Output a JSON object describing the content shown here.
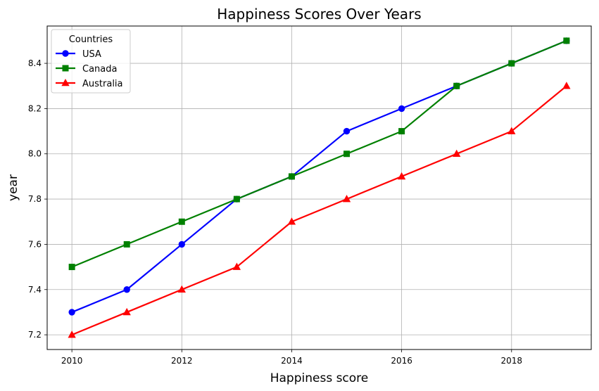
{
  "chart_data": {
    "type": "line",
    "title": "Happiness Scores Over Years",
    "xlabel": "Happiness score",
    "ylabel": "year",
    "x": [
      2010,
      2011,
      2012,
      2013,
      2014,
      2015,
      2016,
      2017,
      2018,
      2019
    ],
    "xlim": [
      2009.55,
      2019.45
    ],
    "ylim": [
      7.135,
      8.565
    ],
    "xticks": [
      2010,
      2012,
      2014,
      2016,
      2018
    ],
    "yticks": [
      7.2,
      7.4,
      7.6,
      7.8,
      8.0,
      8.2,
      8.4
    ],
    "grid": true,
    "legend": {
      "title": "Countries",
      "placement": "top-left"
    },
    "series": [
      {
        "name": "USA",
        "color": "#0000ff",
        "marker": "circle",
        "values": [
          7.3,
          7.4,
          7.6,
          7.8,
          7.9,
          8.1,
          8.2,
          8.3,
          8.4,
          8.5
        ]
      },
      {
        "name": "Canada",
        "color": "#008000",
        "marker": "square",
        "values": [
          7.5,
          7.6,
          7.7,
          7.8,
          7.9,
          8.0,
          8.1,
          8.3,
          8.4,
          8.5
        ]
      },
      {
        "name": "Australia",
        "color": "#ff0000",
        "marker": "triangle",
        "values": [
          7.2,
          7.3,
          7.4,
          7.5,
          7.7,
          7.8,
          7.9,
          8.0,
          8.1,
          8.3
        ]
      }
    ]
  }
}
